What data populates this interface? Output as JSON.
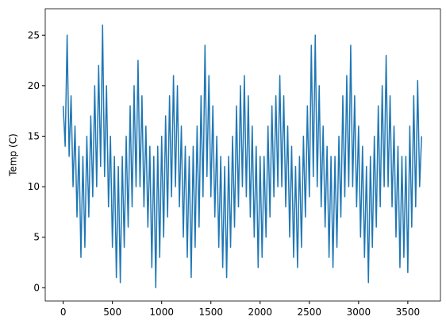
{
  "chart_data": {
    "type": "line",
    "ylabel": "Temp (C)",
    "x": [
      0,
      20,
      40,
      60,
      80,
      100,
      120,
      140,
      160,
      180,
      200,
      220,
      240,
      260,
      280,
      300,
      320,
      340,
      360,
      380,
      400,
      420,
      440,
      460,
      480,
      500,
      520,
      540,
      560,
      580,
      600,
      620,
      640,
      660,
      680,
      700,
      720,
      740,
      760,
      780,
      800,
      820,
      840,
      860,
      880,
      900,
      920,
      940,
      960,
      980,
      1000,
      1020,
      1040,
      1060,
      1080,
      1100,
      1120,
      1140,
      1160,
      1180,
      1200,
      1220,
      1240,
      1260,
      1280,
      1300,
      1320,
      1340,
      1360,
      1380,
      1400,
      1420,
      1440,
      1460,
      1480,
      1500,
      1520,
      1540,
      1560,
      1580,
      1600,
      1620,
      1640,
      1660,
      1680,
      1700,
      1720,
      1740,
      1760,
      1780,
      1800,
      1820,
      1840,
      1860,
      1880,
      1900,
      1920,
      1940,
      1960,
      1980,
      2000,
      2020,
      2040,
      2060,
      2080,
      2100,
      2120,
      2140,
      2160,
      2180,
      2200,
      2220,
      2240,
      2260,
      2280,
      2300,
      2320,
      2340,
      2360,
      2380,
      2400,
      2420,
      2440,
      2460,
      2480,
      2500,
      2520,
      2540,
      2560,
      2580,
      2600,
      2620,
      2640,
      2660,
      2680,
      2700,
      2720,
      2740,
      2760,
      2780,
      2800,
      2820,
      2840,
      2860,
      2880,
      2900,
      2920,
      2940,
      2960,
      2980,
      3000,
      3020,
      3040,
      3060,
      3080,
      3100,
      3120,
      3140,
      3160,
      3180,
      3200,
      3220,
      3240,
      3260,
      3280,
      3300,
      3320,
      3340,
      3360,
      3380,
      3400,
      3420,
      3440,
      3460,
      3480,
      3500,
      3520,
      3540,
      3560,
      3580,
      3600,
      3620,
      3640
    ],
    "series": [
      {
        "color": "#1f77b4",
        "values": [
          18,
          14,
          25,
          13,
          19,
          10,
          16,
          7,
          14,
          3,
          13,
          4,
          15,
          7,
          17,
          9,
          20,
          10,
          22,
          12,
          26,
          11,
          20,
          8,
          15,
          4,
          13,
          1,
          12,
          0.5,
          13,
          4,
          15,
          6,
          18,
          8,
          20,
          10,
          22.5,
          10,
          19,
          8,
          16,
          6,
          14,
          2,
          13,
          0,
          14,
          3,
          15,
          5,
          17,
          7,
          19,
          9,
          21,
          10,
          20,
          8,
          16,
          5,
          14,
          3,
          13,
          1,
          14,
          4,
          16,
          6,
          19,
          9,
          24,
          11,
          21,
          9,
          18,
          7,
          15,
          4,
          13,
          2,
          12,
          1,
          13,
          4,
          15,
          6,
          18,
          8,
          20,
          10,
          21,
          9,
          19,
          7,
          16,
          5,
          14,
          2,
          13,
          3,
          13,
          5,
          16,
          7,
          18,
          9,
          19,
          10,
          21,
          10,
          19,
          8,
          16,
          5,
          14,
          3,
          12,
          2,
          13,
          4,
          15,
          7,
          18,
          9,
          24,
          11,
          25,
          10,
          20,
          8,
          16,
          6,
          14,
          3,
          13,
          2,
          13,
          4,
          15,
          7,
          19,
          9,
          21,
          10,
          24,
          10,
          19,
          8,
          16,
          5,
          14,
          3,
          12,
          0.5,
          13,
          4,
          15,
          6,
          18,
          8,
          20,
          10,
          23,
          10,
          19,
          8,
          16,
          5,
          14,
          2,
          13,
          3,
          13,
          1.5,
          16,
          6,
          19,
          8,
          20.5,
          10,
          15
        ]
      }
    ],
    "xlim": [
      -182.45,
      3831.45
    ],
    "xticks": [
      0,
      500,
      1000,
      1500,
      2000,
      2500,
      3000,
      3500
    ],
    "ylim": [
      -1.315,
      27.615
    ],
    "yticks": [
      0,
      5,
      10,
      15,
      20,
      25
    ]
  }
}
